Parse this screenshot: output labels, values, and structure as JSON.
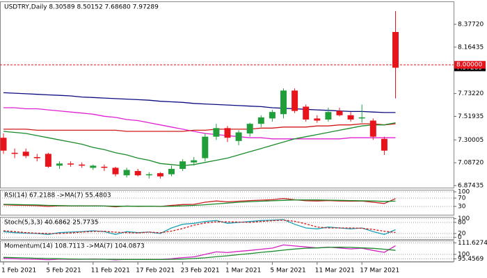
{
  "chart_data": [
    {
      "type": "candlestick",
      "title": "USDTRY,Daily  8.30589 8.50152 7.68680 7.97289",
      "categories": [
        "1 Feb 2021",
        null,
        null,
        null,
        "5 Feb 2021",
        null,
        null,
        null,
        "11 Feb 2021",
        null,
        null,
        null,
        "17 Feb 2021",
        null,
        null,
        null,
        "23 Feb 2021",
        null,
        null,
        null,
        "1 Mar 2021",
        null,
        null,
        null,
        "5 Mar 2021",
        null,
        null,
        null,
        "11 Mar 2021",
        null,
        null,
        null,
        "17 Mar 2021",
        null,
        null,
        null
      ],
      "open": [
        7.32,
        7.18,
        7.19,
        7.14,
        7.17,
        7.06,
        7.08,
        7.07,
        7.04,
        7.05,
        7.04,
        6.97,
        7.01,
        6.97,
        6.99,
        6.98,
        7.03,
        7.09,
        7.13,
        7.33,
        7.41,
        7.29,
        7.36,
        7.45,
        7.5,
        7.54,
        7.76,
        7.61,
        7.5,
        7.49,
        7.57,
        7.53,
        7.5,
        7.48,
        7.31,
        8.30589
      ],
      "high": [
        7.36,
        7.22,
        7.22,
        7.17,
        7.18,
        7.1,
        7.1,
        7.09,
        7.07,
        7.07,
        7.05,
        7.04,
        7.03,
        7.0,
        7.0,
        7.06,
        7.12,
        7.14,
        7.36,
        7.45,
        7.43,
        7.39,
        7.46,
        7.53,
        7.58,
        7.78,
        7.78,
        7.63,
        7.53,
        7.6,
        7.6,
        7.56,
        7.63,
        7.5,
        7.33,
        8.50152
      ],
      "low": [
        7.17,
        7.13,
        7.13,
        7.1,
        7.04,
        7.03,
        7.05,
        7.04,
        7.02,
        7.01,
        6.96,
        6.95,
        6.96,
        6.94,
        6.94,
        6.96,
        7.01,
        7.06,
        7.1,
        7.3,
        7.28,
        7.25,
        7.33,
        7.42,
        7.47,
        7.5,
        7.55,
        7.47,
        7.46,
        7.47,
        7.52,
        7.47,
        7.46,
        7.3,
        7.16,
        7.6868
      ],
      "close": [
        7.2,
        7.17,
        7.15,
        7.13,
        7.05,
        7.08,
        7.07,
        7.06,
        7.06,
        7.04,
        6.98,
        7.02,
        6.97,
        6.98,
        6.96,
        7.03,
        7.1,
        7.11,
        7.33,
        7.41,
        7.32,
        7.37,
        7.45,
        7.51,
        7.56,
        7.76,
        7.57,
        7.49,
        7.48,
        7.56,
        7.53,
        7.49,
        7.51,
        7.33,
        7.2,
        7.97289
      ],
      "up_color": "#1f9e3a",
      "down_color": "#e8141c",
      "series": [
        {
          "color": "#0a0a80",
          "values": [
            7.74,
            7.735,
            7.73,
            7.725,
            7.72,
            7.715,
            7.71,
            7.7,
            7.695,
            7.69,
            7.685,
            7.68,
            7.675,
            7.67,
            7.66,
            7.655,
            7.65,
            7.64,
            7.635,
            7.63,
            7.625,
            7.62,
            7.615,
            7.61,
            7.6,
            7.595,
            7.59,
            7.585,
            7.58,
            7.575,
            7.57,
            7.565,
            7.565,
            7.56,
            7.555,
            7.555
          ]
        },
        {
          "color": "#e020d0",
          "values": [
            7.6,
            7.6,
            7.59,
            7.59,
            7.58,
            7.57,
            7.56,
            7.55,
            7.54,
            7.52,
            7.51,
            7.49,
            7.48,
            7.46,
            7.44,
            7.42,
            7.4,
            7.38,
            7.36,
            7.35,
            7.34,
            7.33,
            7.32,
            7.32,
            7.31,
            7.31,
            7.31,
            7.31,
            7.31,
            7.31,
            7.31,
            7.32,
            7.32,
            7.32,
            7.32,
            7.32
          ]
        },
        {
          "color": "#d01818",
          "values": [
            7.4,
            7.4,
            7.4,
            7.39,
            7.39,
            7.39,
            7.39,
            7.39,
            7.39,
            7.39,
            7.39,
            7.38,
            7.38,
            7.38,
            7.38,
            7.38,
            7.38,
            7.39,
            7.39,
            7.4,
            7.4,
            7.4,
            7.4,
            7.41,
            7.41,
            7.42,
            7.42,
            7.42,
            7.43,
            7.43,
            7.44,
            7.44,
            7.45,
            7.45,
            7.44,
            7.45
          ]
        },
        {
          "color": "#1a8a2a",
          "values": [
            7.38,
            7.37,
            7.36,
            7.34,
            7.32,
            7.3,
            7.28,
            7.26,
            7.23,
            7.21,
            7.18,
            7.16,
            7.13,
            7.11,
            7.08,
            7.07,
            7.06,
            7.07,
            7.09,
            7.11,
            7.13,
            7.16,
            7.19,
            7.22,
            7.25,
            7.28,
            7.31,
            7.33,
            7.35,
            7.37,
            7.39,
            7.41,
            7.43,
            7.44,
            7.44,
            7.46
          ]
        }
      ],
      "ylim": [
        6.855,
        8.591
      ],
      "yticks": [
        {
          "value": 8.3772,
          "label": "8.37720"
        },
        {
          "value": 8.16435,
          "label": "8.16435"
        },
        {
          "value": 7.7322,
          "label": "7.73220"
        },
        {
          "value": 7.51935,
          "label": "7.51935"
        },
        {
          "value": 7.30005,
          "label": "7.30005"
        },
        {
          "value": 7.0872,
          "label": "7.08720"
        },
        {
          "value": 6.87435,
          "label": "6.87435"
        }
      ],
      "reference_line": {
        "value": 8.0,
        "label": "8.00000",
        "color": "#e8141c"
      }
    },
    {
      "type": "line",
      "title": "RSI(14) 67.2188  ->MA(7) 55.4803",
      "series": [
        {
          "color": "#c81e1e",
          "values": [
            38,
            36,
            35,
            34,
            30,
            33,
            32,
            32,
            33,
            32,
            28,
            32,
            30,
            31,
            30,
            35,
            39,
            40,
            50,
            56,
            52,
            55,
            58,
            60,
            62,
            68,
            62,
            57,
            56,
            58,
            56,
            55,
            56,
            50,
            44,
            67.2188
          ]
        },
        {
          "color": "#1a8a2a",
          "values": [
            40,
            39,
            38,
            37,
            35,
            34,
            33,
            33,
            32,
            32,
            31,
            31,
            31,
            31,
            30,
            31,
            33,
            35,
            38,
            42,
            46,
            50,
            53,
            55,
            57,
            59,
            61,
            61,
            61,
            60,
            59,
            58,
            57,
            56,
            54,
            55.4803
          ]
        }
      ],
      "ylim": [
        -10,
        110
      ],
      "yticks": [
        30,
        70,
        100
      ],
      "grid": true
    },
    {
      "type": "line",
      "title": "Stoch(5,3,3) 40.6862 25.7735",
      "series": [
        {
          "color": "#1aa0b4",
          "values": [
            30,
            25,
            22,
            20,
            15,
            25,
            28,
            30,
            35,
            30,
            15,
            30,
            25,
            28,
            20,
            50,
            70,
            75,
            85,
            90,
            75,
            80,
            85,
            90,
            92,
            95,
            70,
            50,
            45,
            55,
            50,
            45,
            50,
            30,
            15,
            40.6862
          ]
        },
        {
          "color": "#d01818",
          "dashed": true,
          "values": [
            35,
            30,
            25,
            22,
            20,
            20,
            23,
            28,
            31,
            32,
            27,
            25,
            23,
            28,
            24,
            33,
            47,
            65,
            77,
            83,
            83,
            82,
            80,
            85,
            89,
            92,
            86,
            72,
            55,
            50,
            50,
            50,
            48,
            42,
            32,
            25.7735
          ]
        }
      ],
      "ylim": [
        -10,
        110
      ],
      "yticks": [
        0,
        20,
        80,
        100
      ],
      "grid": true
    },
    {
      "type": "line",
      "title": "Momentum(14) 108.7113  ->MA(7) 104.0873",
      "series": [
        {
          "color": "#d020c0",
          "values": [
            96,
            95.5,
            95.2,
            95,
            94.6,
            95.2,
            95,
            95,
            95.3,
            95.1,
            94.5,
            95,
            94.8,
            95,
            94.9,
            95.6,
            96.8,
            97.5,
            100,
            102.5,
            101.8,
            103,
            104,
            105.2,
            106.3,
            109.5,
            108.5,
            107.5,
            106.5,
            107.3,
            106.4,
            105.5,
            106.2,
            104,
            102,
            108.7113
          ]
        },
        {
          "color": "#1a8a2a",
          "values": [
            97,
            96.7,
            96.4,
            96.1,
            95.8,
            95.6,
            95.4,
            95.2,
            95.1,
            95.1,
            95,
            94.9,
            94.9,
            94.9,
            94.9,
            95,
            95.3,
            95.8,
            96.6,
            97.6,
            98.6,
            99.7,
            100.8,
            102,
            103,
            104.3,
            105.4,
            106.2,
            106.5,
            107,
            107.2,
            107,
            106.6,
            106.1,
            105.2,
            104.0873
          ]
        }
      ],
      "ylim": [
        93,
        114
      ],
      "yticks": [
        95.4569,
        100,
        111.6274
      ],
      "grid": true
    }
  ]
}
